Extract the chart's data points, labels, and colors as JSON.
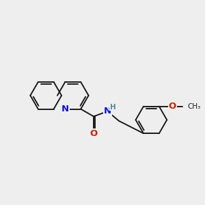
{
  "background_color": "#eeeeee",
  "bond_color": "#1a1a1a",
  "bond_width": 1.4,
  "nitrogen_color": "#1010dd",
  "oxygen_color": "#cc2200",
  "hydrogen_color": "#4a9090",
  "font_size_atom": 8.5,
  "figsize": [
    3.0,
    3.0
  ],
  "dpi": 100,
  "xlim": [
    0,
    10
  ],
  "ylim": [
    0,
    10
  ],
  "ring_size": 0.78
}
